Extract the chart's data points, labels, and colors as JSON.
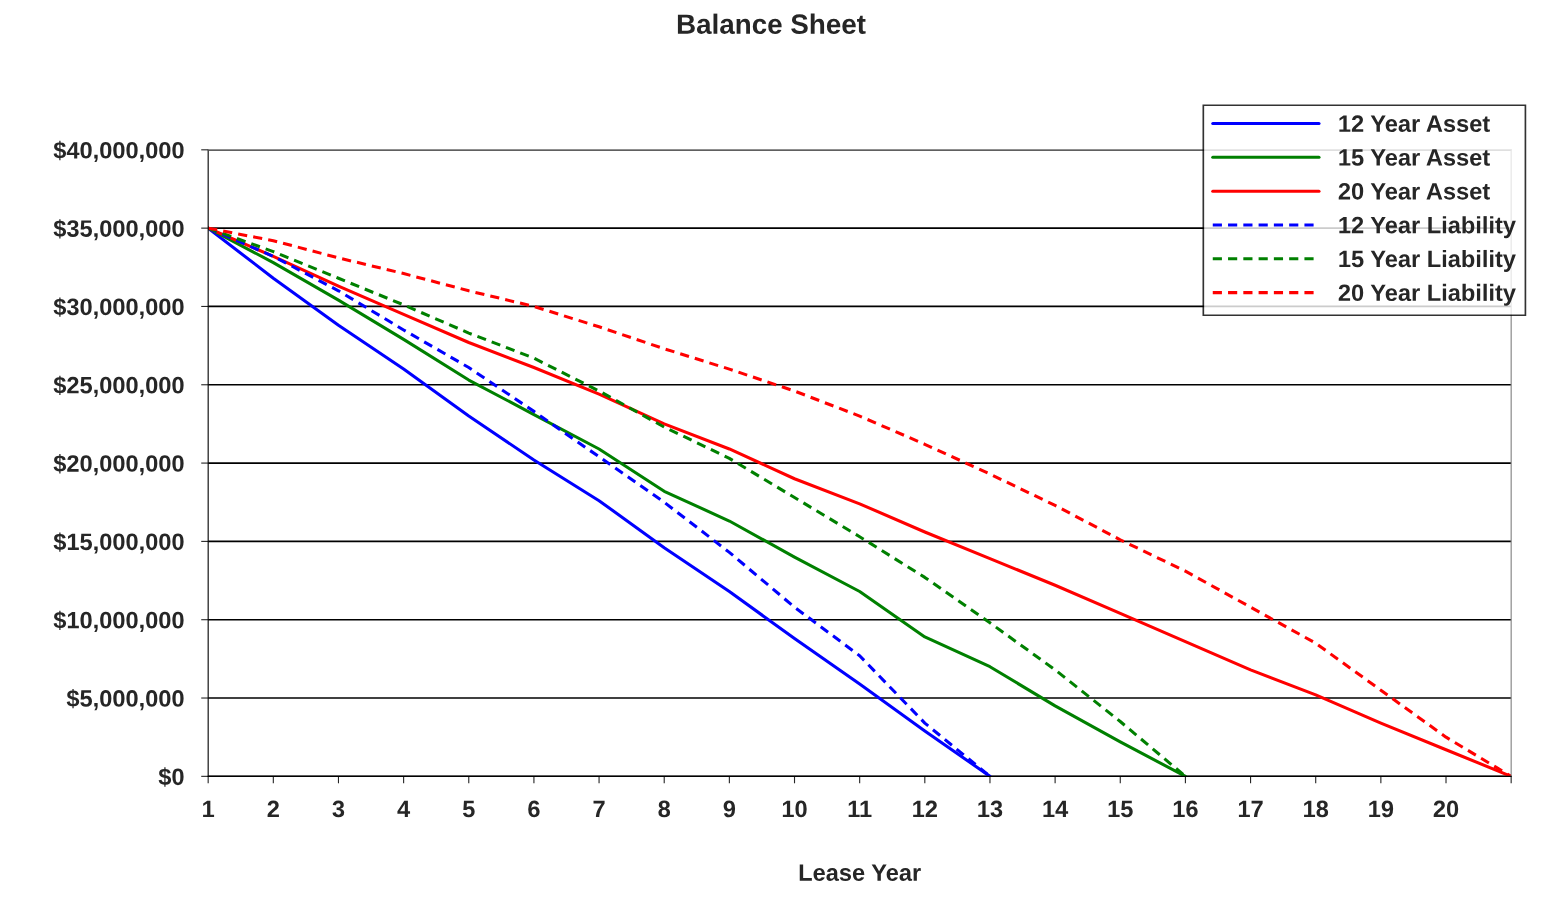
{
  "chart_data": {
    "type": "line",
    "title": "Balance Sheet",
    "xlabel": "Lease Year",
    "xlim": [
      1,
      21
    ],
    "xticks": [
      1,
      2,
      3,
      4,
      5,
      6,
      7,
      8,
      9,
      10,
      11,
      12,
      13,
      14,
      15,
      16,
      17,
      18,
      19,
      20,
      {
        "value": 21,
        "label": null
      }
    ],
    "ylim": [
      0,
      40000000
    ],
    "yticks": [
      {
        "value": 0,
        "label": "$0"
      },
      {
        "value": 5000000,
        "label": "$5,000,000"
      },
      {
        "value": 10000000,
        "label": "$10,000,000"
      },
      {
        "value": 15000000,
        "label": "$15,000,000"
      },
      {
        "value": 20000000,
        "label": "$20,000,000"
      },
      {
        "value": 25000000,
        "label": "$25,000,000"
      },
      {
        "value": 30000000,
        "label": "$30,000,000"
      },
      {
        "value": 35000000,
        "label": "$35,000,000"
      },
      {
        "value": 40000000,
        "label": "$40,000,000"
      }
    ],
    "grid": "y",
    "legend": "top right",
    "series": [
      {
        "name": "12 Year Asset",
        "color": "#0000ff",
        "line_style": "solid",
        "x": [
          1,
          2,
          3,
          4,
          5,
          6,
          7,
          8,
          9,
          10,
          11,
          12,
          13
        ],
        "values": [
          35000000,
          31800000,
          28800000,
          26000000,
          23000000,
          20200000,
          17600000,
          14600000,
          11800000,
          8800000,
          5900000,
          2900000,
          0
        ]
      },
      {
        "name": "15 Year Asset",
        "color": "#008000",
        "line_style": "solid",
        "x": [
          1,
          2,
          3,
          4,
          5,
          6,
          7,
          8,
          9,
          10,
          11,
          12,
          13,
          14,
          15,
          16
        ],
        "values": [
          35000000,
          32800000,
          30400000,
          27900000,
          25300000,
          23100000,
          20900000,
          18200000,
          16300000,
          14000000,
          11800000,
          8900000,
          7000000,
          4500000,
          2200000,
          0
        ]
      },
      {
        "name": "20 Year Asset",
        "color": "#ff0000",
        "line_style": "solid",
        "x": [
          1,
          2,
          3,
          4,
          5,
          6,
          7,
          8,
          9,
          10,
          11,
          12,
          13,
          14,
          15,
          16,
          17,
          18,
          19,
          20,
          21
        ],
        "values": [
          35000000,
          33200000,
          31300000,
          29500000,
          27700000,
          26100000,
          24400000,
          22500000,
          20900000,
          19000000,
          17400000,
          15600000,
          13900000,
          12200000,
          10400000,
          8600000,
          6800000,
          5200000,
          3400000,
          1700000,
          0
        ]
      },
      {
        "name": "12 Year Liability",
        "color": "#0000ff",
        "line_style": "dashed",
        "x": [
          1,
          2,
          3,
          4,
          5,
          6,
          7,
          8,
          9,
          10,
          11,
          12,
          13
        ],
        "values": [
          35000000,
          33200000,
          31000000,
          28500000,
          26100000,
          23300000,
          20400000,
          17500000,
          14300000,
          10800000,
          7700000,
          3400000,
          0
        ]
      },
      {
        "name": "15 Year Liability",
        "color": "#008000",
        "line_style": "dashed",
        "x": [
          1,
          2,
          3,
          4,
          5,
          6,
          7,
          8,
          9,
          10,
          11,
          12,
          13,
          14,
          15,
          16
        ],
        "values": [
          35000000,
          33500000,
          31800000,
          30100000,
          28300000,
          26700000,
          24600000,
          22300000,
          20300000,
          17800000,
          15300000,
          12700000,
          9800000,
          6800000,
          3500000,
          0
        ]
      },
      {
        "name": "20 Year Liability",
        "color": "#ff0000",
        "line_style": "dashed",
        "x": [
          1,
          2,
          3,
          4,
          5,
          6,
          7,
          8,
          9,
          10,
          11,
          12,
          13,
          14,
          15,
          16,
          17,
          18,
          19,
          20,
          21
        ],
        "values": [
          35000000,
          34200000,
          33100000,
          32100000,
          31000000,
          30000000,
          28700000,
          27300000,
          26000000,
          24600000,
          23000000,
          21200000,
          19300000,
          17300000,
          15100000,
          13100000,
          10800000,
          8500000,
          5500000,
          2500000,
          0
        ]
      }
    ]
  }
}
